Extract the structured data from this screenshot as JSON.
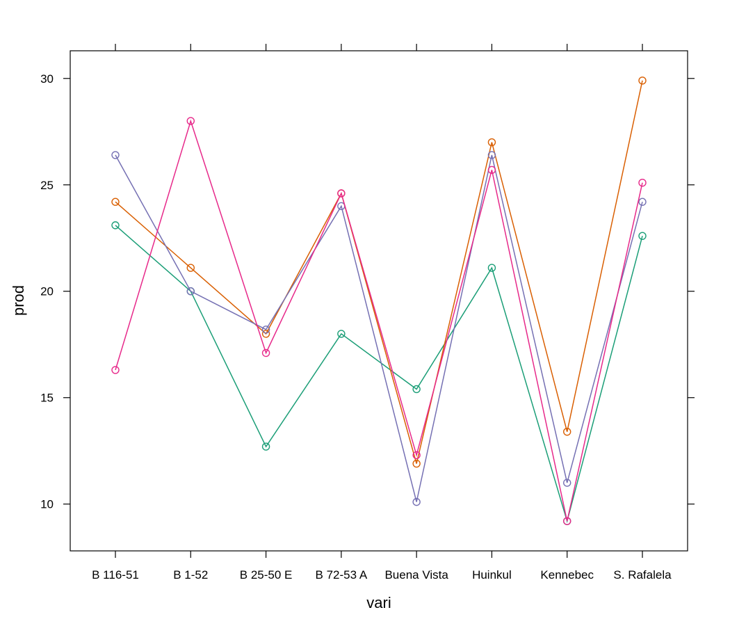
{
  "chart_data": {
    "type": "line",
    "title": "",
    "xlabel": "vari",
    "ylabel": "prod",
    "categories": [
      "B 116-51",
      "B 1-52",
      "B 25-50 E",
      "B 72-53 A",
      "Buena Vista",
      "Huinkul",
      "Kennebec",
      "S. Rafalela"
    ],
    "yticks": [
      10,
      15,
      20,
      25,
      30
    ],
    "ylim": [
      7.8,
      31.3
    ],
    "grid": false,
    "legend": "none",
    "markers": "open-circle",
    "series": [
      {
        "color": "#1b9e77",
        "values": [
          23.1,
          20.0,
          12.7,
          18.0,
          15.4,
          21.1,
          9.2,
          22.6
        ]
      },
      {
        "color": "#d95f02",
        "values": [
          24.2,
          21.1,
          18.0,
          24.6,
          11.9,
          27.0,
          13.4,
          29.9
        ]
      },
      {
        "color": "#7570b3",
        "values": [
          26.4,
          20.0,
          18.2,
          24.0,
          10.1,
          26.4,
          11.0,
          24.2
        ]
      },
      {
        "color": "#e7298a",
        "values": [
          16.3,
          28.0,
          17.1,
          24.6,
          12.3,
          25.7,
          9.2,
          25.1
        ]
      }
    ]
  }
}
